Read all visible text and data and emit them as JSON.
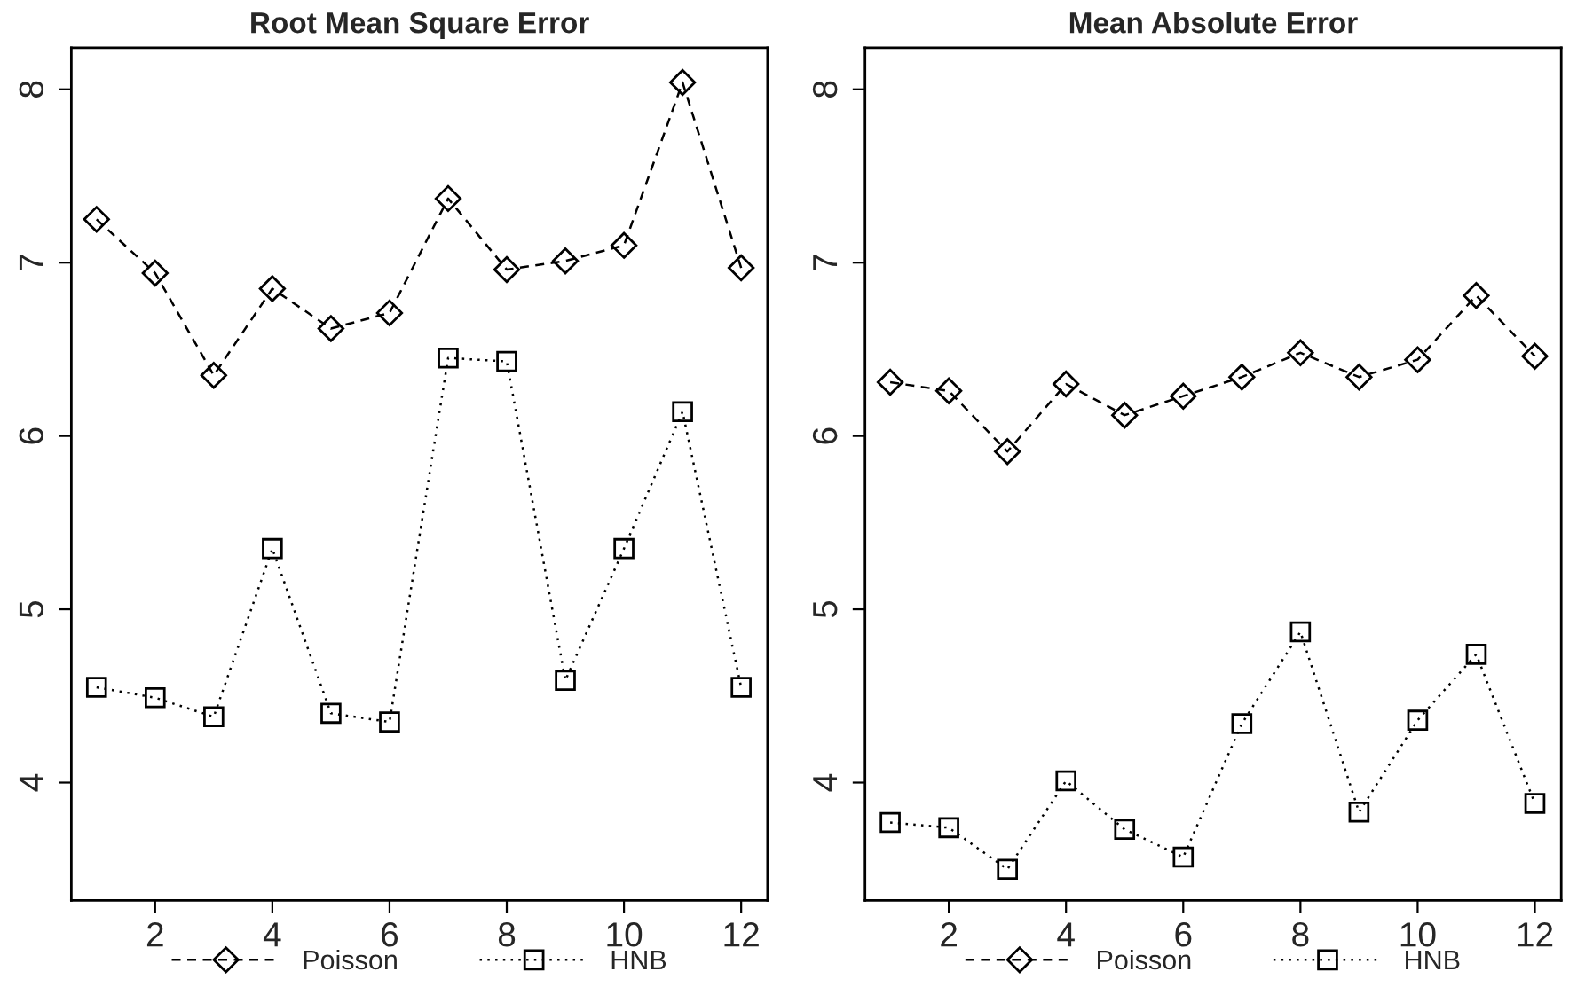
{
  "chart_data": [
    {
      "type": "line",
      "title": "Root Mean Square Error",
      "x": [
        1,
        2,
        3,
        4,
        5,
        6,
        7,
        8,
        9,
        10,
        11,
        12
      ],
      "xlim": [
        0.57,
        12.45
      ],
      "xticks": [
        2,
        4,
        6,
        8,
        10,
        12
      ],
      "ylim": [
        3.32,
        8.24
      ],
      "yticks": [
        4,
        5,
        6,
        7,
        8
      ],
      "grid": false,
      "legend": "bottom",
      "series": [
        {
          "name": "Poisson",
          "color": "#000000",
          "marker": "diamond",
          "line_style": "dashed",
          "values": [
            7.25,
            6.94,
            6.35,
            6.85,
            6.62,
            6.71,
            7.37,
            6.96,
            7.01,
            7.1,
            8.04,
            6.97
          ]
        },
        {
          "name": "HNB",
          "color": "#000000",
          "marker": "square",
          "line_style": "dotted",
          "values": [
            4.55,
            4.49,
            4.38,
            5.35,
            4.4,
            4.35,
            6.45,
            6.43,
            4.59,
            5.35,
            6.14,
            4.55
          ]
        }
      ]
    },
    {
      "type": "line",
      "title": "Mean Absolute Error",
      "x": [
        1,
        2,
        3,
        4,
        5,
        6,
        7,
        8,
        9,
        10,
        11,
        12
      ],
      "xlim": [
        0.57,
        12.45
      ],
      "xticks": [
        2,
        4,
        6,
        8,
        10,
        12
      ],
      "ylim": [
        3.32,
        8.24
      ],
      "yticks": [
        4,
        5,
        6,
        7,
        8
      ],
      "grid": false,
      "legend": "bottom",
      "series": [
        {
          "name": "Poisson",
          "color": "#000000",
          "marker": "diamond",
          "line_style": "dashed",
          "values": [
            6.31,
            6.26,
            5.91,
            6.3,
            6.12,
            6.23,
            6.34,
            6.48,
            6.34,
            6.44,
            6.81,
            6.46
          ]
        },
        {
          "name": "HNB",
          "color": "#000000",
          "marker": "square",
          "line_style": "dotted",
          "values": [
            3.77,
            3.74,
            3.5,
            4.01,
            3.73,
            3.57,
            4.34,
            4.87,
            3.83,
            4.36,
            4.74,
            3.88
          ]
        }
      ]
    }
  ]
}
